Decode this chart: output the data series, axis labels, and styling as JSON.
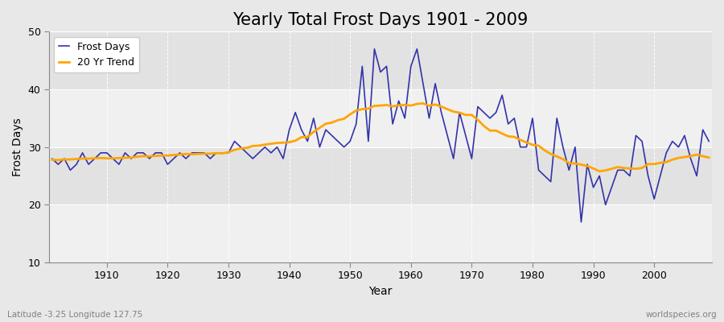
{
  "title": "Yearly Total Frost Days 1901 - 2009",
  "xlabel": "Year",
  "ylabel": "Frost Days",
  "subtitle": "Latitude -3.25 Longitude 127.75",
  "watermark": "worldspecies.org",
  "years": [
    1901,
    1902,
    1903,
    1904,
    1905,
    1906,
    1907,
    1908,
    1909,
    1910,
    1911,
    1912,
    1913,
    1914,
    1915,
    1916,
    1917,
    1918,
    1919,
    1920,
    1921,
    1922,
    1923,
    1924,
    1925,
    1926,
    1927,
    1928,
    1929,
    1930,
    1931,
    1932,
    1933,
    1934,
    1935,
    1936,
    1937,
    1938,
    1939,
    1940,
    1941,
    1942,
    1943,
    1944,
    1945,
    1946,
    1947,
    1948,
    1949,
    1950,
    1951,
    1952,
    1953,
    1954,
    1955,
    1956,
    1957,
    1958,
    1959,
    1960,
    1961,
    1962,
    1963,
    1964,
    1965,
    1966,
    1967,
    1968,
    1969,
    1970,
    1971,
    1972,
    1973,
    1974,
    1975,
    1976,
    1977,
    1978,
    1979,
    1980,
    1981,
    1982,
    1983,
    1984,
    1985,
    1986,
    1987,
    1988,
    1989,
    1990,
    1991,
    1992,
    1993,
    1994,
    1995,
    1996,
    1997,
    1998,
    1999,
    2000,
    2001,
    2002,
    2003,
    2004,
    2005,
    2006,
    2007,
    2008,
    2009
  ],
  "frost_days": [
    28,
    27,
    28,
    26,
    27,
    29,
    27,
    28,
    29,
    29,
    28,
    27,
    29,
    28,
    29,
    29,
    28,
    29,
    29,
    27,
    28,
    29,
    28,
    29,
    29,
    29,
    28,
    29,
    29,
    29,
    31,
    30,
    29,
    28,
    29,
    30,
    29,
    30,
    28,
    33,
    36,
    33,
    31,
    35,
    30,
    33,
    32,
    31,
    30,
    31,
    34,
    44,
    31,
    47,
    43,
    44,
    34,
    38,
    35,
    44,
    47,
    41,
    35,
    41,
    36,
    32,
    28,
    36,
    32,
    28,
    37,
    36,
    35,
    36,
    39,
    34,
    35,
    30,
    30,
    35,
    26,
    25,
    24,
    35,
    30,
    26,
    30,
    17,
    27,
    23,
    25,
    20,
    23,
    26,
    26,
    25,
    32,
    31,
    25,
    21,
    25,
    29,
    31,
    30,
    32,
    28,
    25,
    33,
    31
  ],
  "trend_window": 20,
  "line_color": "#3333aa",
  "trend_color": "#FFA500",
  "fig_bg_color": "#e8e8e8",
  "plot_bg_color": "#ebebeb",
  "band_color_light": "#f0f0f0",
  "band_color_dark": "#e2e2e2",
  "ylim": [
    10,
    50
  ],
  "yticks": [
    10,
    20,
    30,
    40,
    50
  ],
  "xticks": [
    1910,
    1920,
    1930,
    1940,
    1950,
    1960,
    1970,
    1980,
    1990,
    2000
  ],
  "title_fontsize": 15,
  "axis_fontsize": 10,
  "tick_fontsize": 9,
  "legend_fontsize": 9
}
